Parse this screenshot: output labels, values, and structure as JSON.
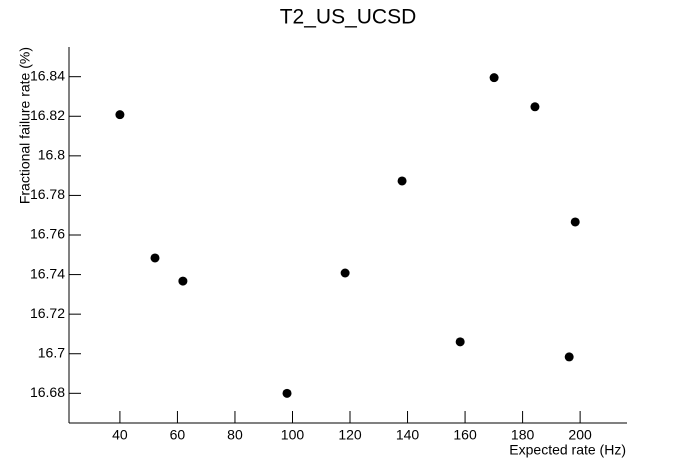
{
  "chart_data": {
    "type": "scatter",
    "title": "T2_US_UCSD",
    "x_label": "Expected rate (Hz)",
    "y_label": "Fractional failure rate (%)",
    "color": "#000000",
    "x": [
      40,
      52.2,
      61.9,
      98.1,
      118.3,
      138.1,
      158.3,
      170.1,
      184.3,
      196.2,
      198.3
    ],
    "y": [
      16.8208,
      16.7484,
      16.7367,
      16.68,
      16.7408,
      16.7873,
      16.706,
      16.8395,
      16.8248,
      16.6984,
      16.7666
    ],
    "xlim": [
      22.3,
      216.3
    ],
    "ylim": [
      16.665,
      16.855
    ],
    "xticks": [
      40,
      60,
      80,
      100,
      120,
      140,
      160,
      180,
      200
    ],
    "yticks": [
      16.68,
      16.7,
      16.72,
      16.74,
      16.76,
      16.78,
      16.8,
      16.82,
      16.84
    ]
  }
}
